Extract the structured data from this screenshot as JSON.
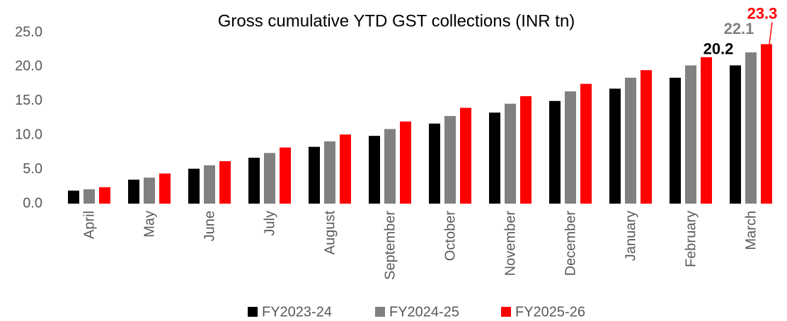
{
  "chart_data": {
    "type": "bar",
    "title": "Gross cumulative YTD GST collections (INR tn)",
    "categories": [
      "April",
      "May",
      "June",
      "July",
      "August",
      "September",
      "October",
      "November",
      "December",
      "January",
      "February",
      "March"
    ],
    "series": [
      {
        "name": "FY2023-24",
        "color": "#000000",
        "values": [
          1.9,
          3.5,
          5.1,
          6.7,
          8.3,
          9.9,
          11.7,
          13.3,
          15.0,
          16.8,
          18.4,
          20.2
        ]
      },
      {
        "name": "FY2024-25",
        "color": "#808080",
        "values": [
          2.1,
          3.8,
          5.6,
          7.4,
          9.1,
          10.9,
          12.8,
          14.6,
          16.4,
          18.4,
          20.2,
          22.1
        ]
      },
      {
        "name": "FY2025-26",
        "color": "#ff0000",
        "values": [
          2.4,
          4.4,
          6.2,
          8.2,
          10.1,
          12.0,
          14.0,
          15.7,
          17.5,
          19.5,
          21.4,
          23.3
        ]
      }
    ],
    "ylim": [
      0,
      25
    ],
    "yticks": [
      {
        "value": 0,
        "label": "0.0"
      },
      {
        "value": 5,
        "label": "5.0"
      },
      {
        "value": 10,
        "label": "10.0"
      },
      {
        "value": 15,
        "label": "15.0"
      },
      {
        "value": 20,
        "label": "20.0"
      },
      {
        "value": 25,
        "label": "25.0"
      }
    ],
    "grid": false,
    "legend": "bottom",
    "data_labels": "last"
  }
}
